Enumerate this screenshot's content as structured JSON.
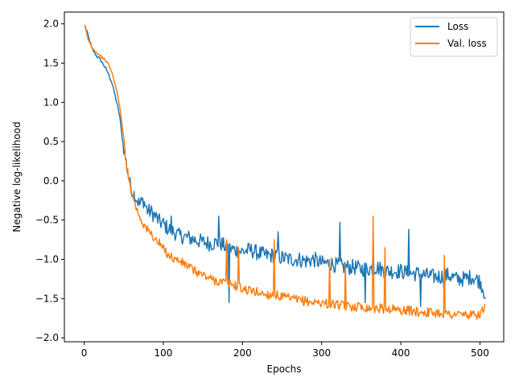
{
  "chart_data": {
    "type": "line",
    "xlabel": "Epochs",
    "ylabel": "Negative log-likelihood",
    "xlim": [
      -25,
      530
    ],
    "ylim": [
      -2.05,
      2.15
    ],
    "xticks": [
      0,
      100,
      200,
      300,
      400,
      500
    ],
    "yticks": [
      -2.0,
      -1.5,
      -1.0,
      -0.5,
      0.0,
      0.5,
      1.0,
      1.5,
      2.0
    ],
    "xtick_labels": [
      "0",
      "100",
      "200",
      "300",
      "400",
      "500"
    ],
    "ytick_labels": [
      "−2.0",
      "−1.5",
      "−1.0",
      "−0.5",
      "0.0",
      "0.5",
      "1.0",
      "1.5",
      "2.0"
    ],
    "grid": false,
    "legend_position": "top-right",
    "series": [
      {
        "name": "Loss",
        "color": "#1f77b4",
        "points": [
          [
            1,
            1.98
          ],
          [
            5,
            1.85
          ],
          [
            10,
            1.68
          ],
          [
            15,
            1.6
          ],
          [
            20,
            1.55
          ],
          [
            25,
            1.47
          ],
          [
            30,
            1.38
          ],
          [
            35,
            1.25
          ],
          [
            40,
            1.05
          ],
          [
            45,
            0.82
          ],
          [
            48,
            0.55
          ],
          [
            52,
            0.3
          ],
          [
            55,
            0.12
          ],
          [
            58,
            -0.05
          ],
          [
            62,
            -0.15
          ],
          [
            66,
            -0.22
          ],
          [
            70,
            -0.3
          ],
          [
            75,
            -0.25
          ],
          [
            80,
            -0.38
          ],
          [
            85,
            -0.4
          ],
          [
            90,
            -0.45
          ],
          [
            95,
            -0.52
          ],
          [
            100,
            -0.55
          ],
          [
            105,
            -0.6
          ],
          [
            110,
            -0.63
          ],
          [
            115,
            -0.66
          ],
          [
            120,
            -0.7
          ],
          [
            130,
            -0.72
          ],
          [
            140,
            -0.75
          ],
          [
            150,
            -0.78
          ],
          [
            160,
            -0.8
          ],
          [
            170,
            -0.78
          ],
          [
            180,
            -0.85
          ],
          [
            190,
            -0.88
          ],
          [
            200,
            -0.9
          ],
          [
            210,
            -0.88
          ],
          [
            220,
            -0.92
          ],
          [
            230,
            -0.95
          ],
          [
            240,
            -0.95
          ],
          [
            250,
            -0.98
          ],
          [
            260,
            -1.0
          ],
          [
            270,
            -1.0
          ],
          [
            280,
            -1.02
          ],
          [
            290,
            -1.0
          ],
          [
            300,
            -1.05
          ],
          [
            310,
            -1.05
          ],
          [
            320,
            -1.08
          ],
          [
            330,
            -1.1
          ],
          [
            340,
            -1.1
          ],
          [
            350,
            -1.12
          ],
          [
            360,
            -1.12
          ],
          [
            370,
            -1.1
          ],
          [
            380,
            -1.15
          ],
          [
            390,
            -1.15
          ],
          [
            400,
            -1.15
          ],
          [
            410,
            -1.18
          ],
          [
            420,
            -1.18
          ],
          [
            430,
            -1.2
          ],
          [
            440,
            -1.22
          ],
          [
            450,
            -1.22
          ],
          [
            460,
            -1.2
          ],
          [
            470,
            -1.25
          ],
          [
            480,
            -1.25
          ],
          [
            490,
            -1.22
          ],
          [
            500,
            -1.28
          ],
          [
            507,
            -1.45
          ]
        ],
        "noise": 0.1,
        "spikes": [
          [
            110,
            -0.45
          ],
          [
            170,
            -0.45
          ],
          [
            183,
            -1.55
          ],
          [
            245,
            -0.65
          ],
          [
            323,
            -0.53
          ],
          [
            355,
            -1.55
          ],
          [
            365,
            -0.7
          ],
          [
            410,
            -0.62
          ],
          [
            425,
            -1.6
          ],
          [
            455,
            -1.5
          ]
        ]
      },
      {
        "name": "Val. loss",
        "color": "#ff7f0e",
        "points": [
          [
            1,
            1.97
          ],
          [
            5,
            1.8
          ],
          [
            10,
            1.7
          ],
          [
            15,
            1.64
          ],
          [
            20,
            1.6
          ],
          [
            25,
            1.55
          ],
          [
            30,
            1.5
          ],
          [
            35,
            1.38
          ],
          [
            40,
            1.2
          ],
          [
            45,
            0.95
          ],
          [
            48,
            0.7
          ],
          [
            52,
            0.35
          ],
          [
            55,
            0.1
          ],
          [
            58,
            -0.05
          ],
          [
            62,
            -0.2
          ],
          [
            66,
            -0.35
          ],
          [
            70,
            -0.45
          ],
          [
            75,
            -0.55
          ],
          [
            80,
            -0.63
          ],
          [
            85,
            -0.68
          ],
          [
            90,
            -0.75
          ],
          [
            95,
            -0.8
          ],
          [
            100,
            -0.87
          ],
          [
            105,
            -0.92
          ],
          [
            110,
            -0.97
          ],
          [
            115,
            -1.0
          ],
          [
            120,
            -1.02
          ],
          [
            130,
            -1.08
          ],
          [
            140,
            -1.15
          ],
          [
            150,
            -1.2
          ],
          [
            160,
            -1.25
          ],
          [
            170,
            -1.28
          ],
          [
            180,
            -1.3
          ],
          [
            190,
            -1.33
          ],
          [
            200,
            -1.38
          ],
          [
            210,
            -1.4
          ],
          [
            220,
            -1.42
          ],
          [
            230,
            -1.45
          ],
          [
            240,
            -1.45
          ],
          [
            250,
            -1.48
          ],
          [
            260,
            -1.5
          ],
          [
            270,
            -1.52
          ],
          [
            280,
            -1.53
          ],
          [
            290,
            -1.55
          ],
          [
            300,
            -1.55
          ],
          [
            310,
            -1.57
          ],
          [
            320,
            -1.58
          ],
          [
            330,
            -1.6
          ],
          [
            340,
            -1.6
          ],
          [
            350,
            -1.6
          ],
          [
            360,
            -1.62
          ],
          [
            370,
            -1.62
          ],
          [
            380,
            -1.63
          ],
          [
            390,
            -1.63
          ],
          [
            400,
            -1.65
          ],
          [
            410,
            -1.65
          ],
          [
            420,
            -1.67
          ],
          [
            430,
            -1.67
          ],
          [
            440,
            -1.68
          ],
          [
            450,
            -1.68
          ],
          [
            460,
            -1.7
          ],
          [
            470,
            -1.7
          ],
          [
            480,
            -1.7
          ],
          [
            490,
            -1.72
          ],
          [
            500,
            -1.7
          ],
          [
            507,
            -1.6
          ]
        ],
        "noise": 0.06,
        "spikes": [
          [
            180,
            -0.75
          ],
          [
            195,
            -0.85
          ],
          [
            240,
            -0.75
          ],
          [
            310,
            -1.0
          ],
          [
            330,
            -1.05
          ],
          [
            365,
            -0.45
          ],
          [
            380,
            -0.85
          ],
          [
            455,
            -0.95
          ]
        ]
      }
    ]
  }
}
